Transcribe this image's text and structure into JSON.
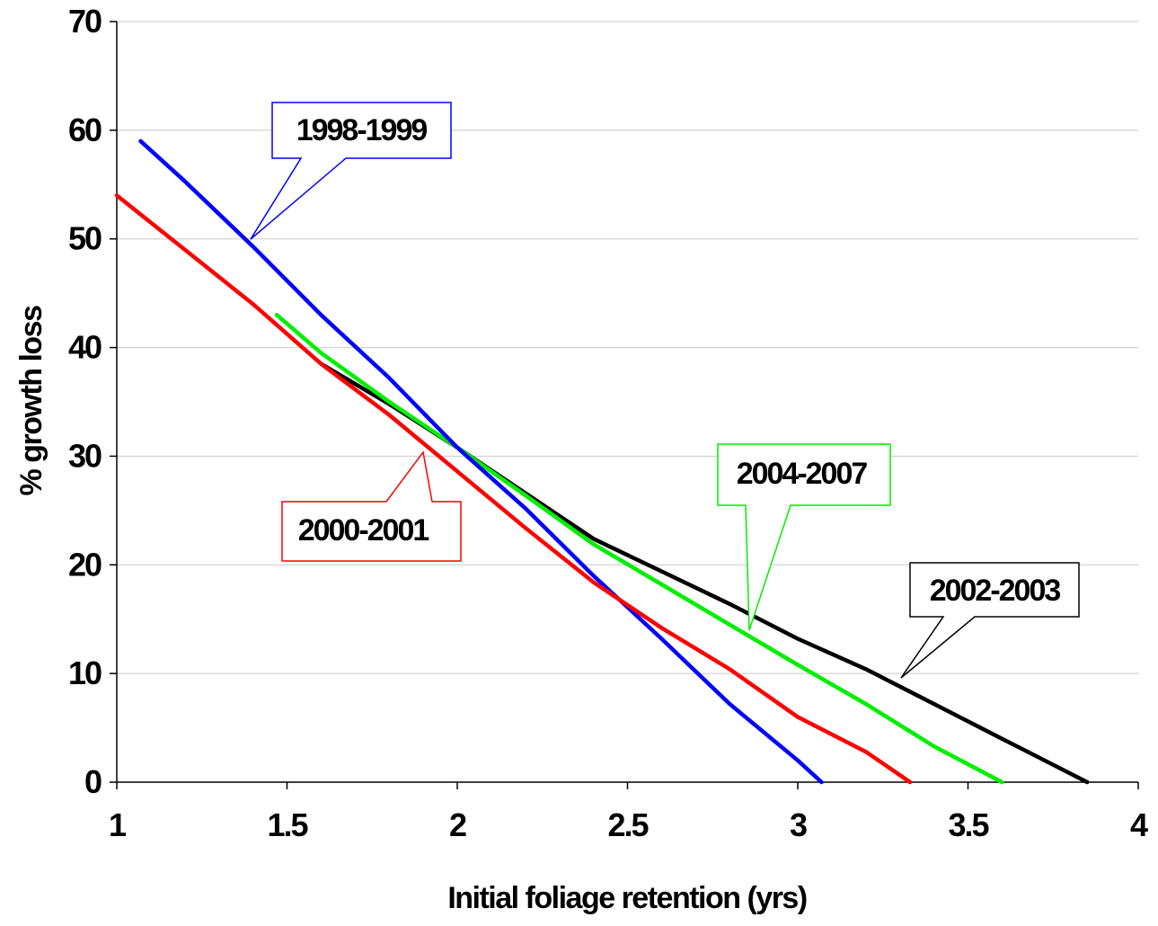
{
  "chart_data": {
    "type": "line",
    "title": "",
    "xlabel": "Initial foliage retention (yrs)",
    "ylabel": "% growth loss",
    "xlim": [
      1,
      4
    ],
    "ylim": [
      0,
      70
    ],
    "x_ticks": [
      1,
      1.5,
      2,
      2.5,
      3,
      3.5,
      4
    ],
    "x_tick_labels": [
      "1",
      "1.5",
      "2",
      "2.5",
      "3",
      "3.5",
      "4"
    ],
    "y_ticks": [
      0,
      10,
      20,
      30,
      40,
      50,
      60,
      70
    ],
    "y_tick_labels": [
      "0",
      "10",
      "20",
      "30",
      "40",
      "50",
      "60",
      "70"
    ],
    "grid": "horizontal",
    "legend": "none",
    "series": [
      {
        "name": "1998-1999",
        "color": "#0000ff",
        "points": [
          [
            1.07,
            59
          ],
          [
            1.2,
            55.3
          ],
          [
            1.4,
            49.3
          ],
          [
            1.6,
            43
          ],
          [
            1.8,
            37.2
          ],
          [
            2.0,
            30.8
          ],
          [
            2.2,
            25.2
          ],
          [
            2.4,
            19
          ],
          [
            2.6,
            13.2
          ],
          [
            2.8,
            7.2
          ],
          [
            3.0,
            2
          ],
          [
            3.07,
            0
          ]
        ]
      },
      {
        "name": "2000-2001",
        "color": "#ff0000",
        "points": [
          [
            1.0,
            54
          ],
          [
            1.2,
            49
          ],
          [
            1.4,
            44
          ],
          [
            1.6,
            38.5
          ],
          [
            1.8,
            33.8
          ],
          [
            2.0,
            28.6
          ],
          [
            2.2,
            23.4
          ],
          [
            2.4,
            18.4
          ],
          [
            2.6,
            14.2
          ],
          [
            2.8,
            10.4
          ],
          [
            3.0,
            6
          ],
          [
            3.2,
            2.8
          ],
          [
            3.33,
            0
          ]
        ]
      },
      {
        "name": "2002-2003",
        "color": "#000000",
        "points": [
          [
            1.6,
            38.5
          ],
          [
            1.8,
            34.8
          ],
          [
            2.0,
            30.8
          ],
          [
            2.2,
            26.6
          ],
          [
            2.4,
            22.4
          ],
          [
            2.6,
            19.4
          ],
          [
            2.8,
            16.4
          ],
          [
            3.0,
            13.2
          ],
          [
            3.2,
            10.4
          ],
          [
            3.4,
            7.2
          ],
          [
            3.6,
            4
          ],
          [
            3.85,
            0
          ]
        ]
      },
      {
        "name": "2004-2007",
        "color": "#00ee00",
        "points": [
          [
            1.47,
            43
          ],
          [
            1.6,
            39.5
          ],
          [
            1.8,
            35
          ],
          [
            2.0,
            30.8
          ],
          [
            2.2,
            26.4
          ],
          [
            2.4,
            21.9
          ],
          [
            2.6,
            18.2
          ],
          [
            2.8,
            14.5
          ],
          [
            3.0,
            10.8
          ],
          [
            3.2,
            7.2
          ],
          [
            3.4,
            3.3
          ],
          [
            3.6,
            0
          ]
        ]
      }
    ],
    "annotations": [
      {
        "text": "1998-1999",
        "series": 0,
        "pointer": [
          1.4,
          50
        ]
      },
      {
        "text": "2000-2001",
        "series": 1,
        "pointer": [
          1.91,
          30.6
        ]
      },
      {
        "text": "2004-2007",
        "series": 3,
        "pointer": [
          2.87,
          14
        ]
      },
      {
        "text": "2002-2003",
        "series": 2,
        "pointer": [
          3.3,
          9.7
        ]
      }
    ]
  }
}
